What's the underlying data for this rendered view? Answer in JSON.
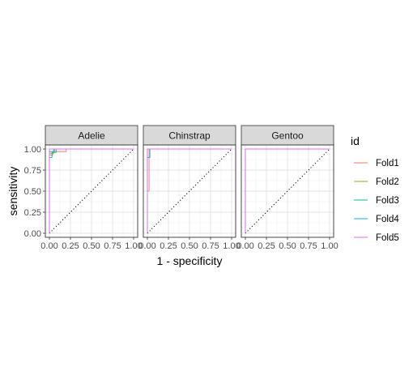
{
  "chart_data": {
    "type": "line",
    "subtype": "roc-curve-faceted",
    "xlabel": "1 - specificity",
    "ylabel": "sensitivity",
    "xlim": [
      0,
      1
    ],
    "ylim": [
      0,
      1
    ],
    "x_ticks": [
      "0.00",
      "0.25",
      "0.50",
      "0.75",
      "1.00"
    ],
    "y_ticks": [
      "0.00",
      "0.25",
      "0.50",
      "0.75",
      "1.00"
    ],
    "grid": true,
    "reference_line": "diagonal dotted",
    "legend": {
      "title": "id",
      "position": "right",
      "entries": [
        {
          "name": "Fold1",
          "color": "#F8766D"
        },
        {
          "name": "Fold2",
          "color": "#A3A500"
        },
        {
          "name": "Fold3",
          "color": "#00BF7D"
        },
        {
          "name": "Fold4",
          "color": "#00B0F6"
        },
        {
          "name": "Fold5",
          "color": "#E76BF3"
        }
      ]
    },
    "facets": [
      {
        "label": "Adelie",
        "series": [
          {
            "name": "Fold1",
            "x": [
              0,
              0,
              0.04,
              0.04,
              0.2,
              0.2,
              1
            ],
            "y": [
              0,
              0.93,
              0.93,
              0.97,
              0.97,
              1,
              1
            ]
          },
          {
            "name": "Fold2",
            "x": [
              0,
              0,
              0.05,
              0.05,
              1
            ],
            "y": [
              0,
              0.95,
              0.95,
              1,
              1
            ]
          },
          {
            "name": "Fold3",
            "x": [
              0,
              0,
              0.03,
              0.03,
              0.08,
              0.08,
              1
            ],
            "y": [
              0,
              0.9,
              0.9,
              0.96,
              0.96,
              1,
              1
            ]
          },
          {
            "name": "Fold4",
            "x": [
              0,
              0,
              0.06,
              0.06,
              1
            ],
            "y": [
              0,
              0.97,
              0.97,
              1,
              1
            ]
          },
          {
            "name": "Fold5",
            "x": [
              0,
              0,
              1
            ],
            "y": [
              0,
              1,
              1
            ]
          }
        ]
      },
      {
        "label": "Chinstrap",
        "series": [
          {
            "name": "Fold1",
            "x": [
              0,
              0,
              0.02,
              0.02,
              1
            ],
            "y": [
              0,
              0.5,
              0.5,
              1,
              1
            ]
          },
          {
            "name": "Fold2",
            "x": [
              0,
              0,
              1
            ],
            "y": [
              0,
              1,
              1
            ]
          },
          {
            "name": "Fold3",
            "x": [
              0,
              0,
              1
            ],
            "y": [
              0,
              1,
              1
            ]
          },
          {
            "name": "Fold4",
            "x": [
              0,
              0,
              0.03,
              0.03,
              1
            ],
            "y": [
              0,
              0.9,
              0.9,
              1,
              1
            ]
          },
          {
            "name": "Fold5",
            "x": [
              0,
              0,
              1
            ],
            "y": [
              0,
              1,
              1
            ]
          }
        ]
      },
      {
        "label": "Gentoo",
        "series": [
          {
            "name": "Fold1",
            "x": [
              0,
              0,
              1
            ],
            "y": [
              0,
              1,
              1
            ]
          },
          {
            "name": "Fold2",
            "x": [
              0,
              0,
              1
            ],
            "y": [
              0,
              1,
              1
            ]
          },
          {
            "name": "Fold3",
            "x": [
              0,
              0,
              1
            ],
            "y": [
              0,
              1,
              1
            ]
          },
          {
            "name": "Fold4",
            "x": [
              0,
              0,
              1
            ],
            "y": [
              0,
              1,
              1
            ]
          },
          {
            "name": "Fold5",
            "x": [
              0,
              0,
              1
            ],
            "y": [
              0,
              1,
              1
            ]
          }
        ]
      }
    ]
  }
}
